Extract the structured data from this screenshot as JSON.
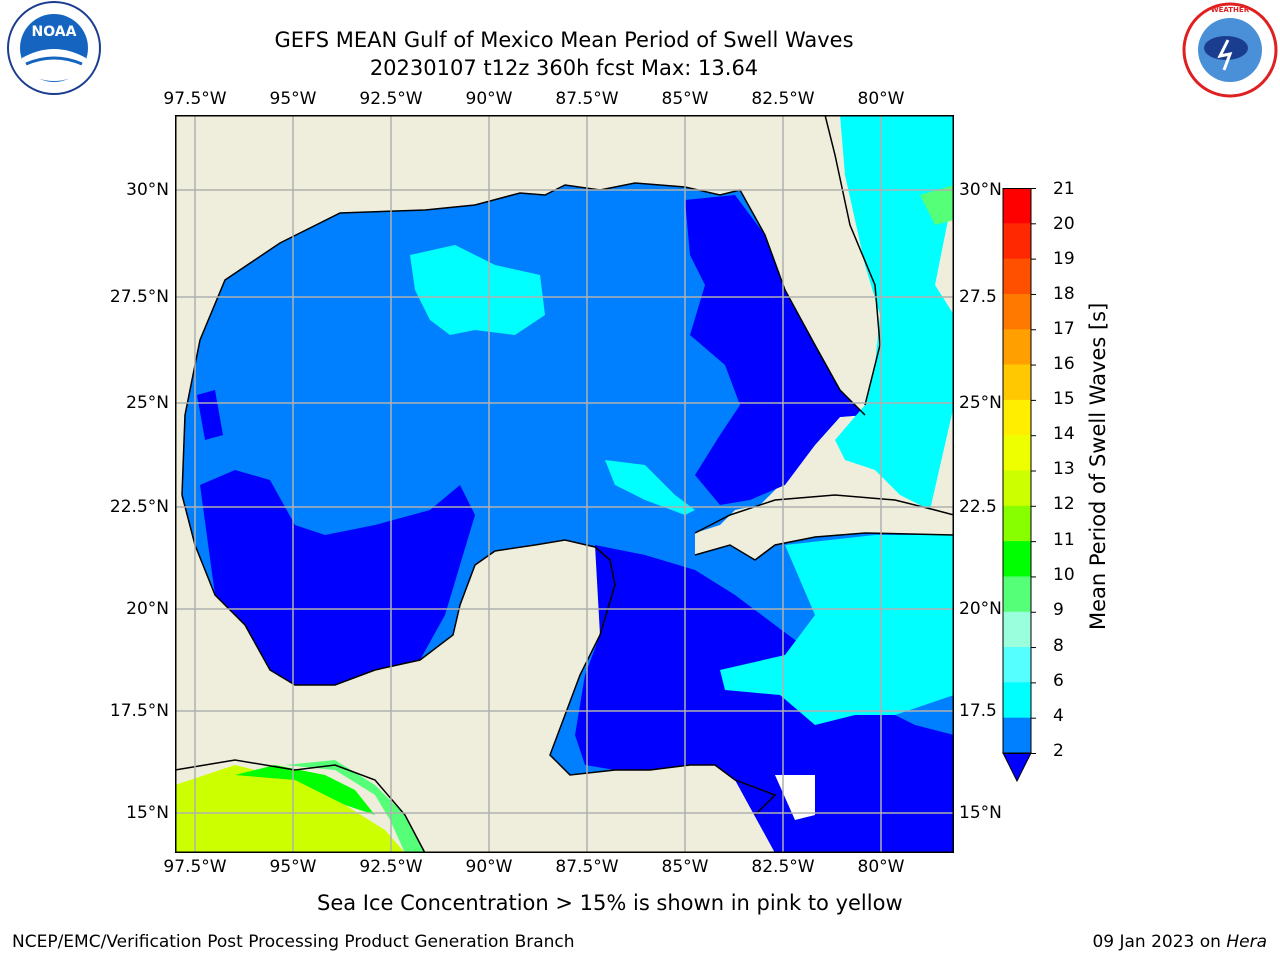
{
  "header": {
    "title_line1": "GEFS MEAN Gulf of Mexico Mean Period of Swell Waves",
    "title_line2": "20230107 t12z 360h fcst   Max: 13.64"
  },
  "map": {
    "lon_labels": [
      "97.5°W",
      "95°W",
      "92.5°W",
      "90°W",
      "87.5°W",
      "85°W",
      "82.5°W",
      "80°W"
    ],
    "lat_labels_left": [
      "30°N",
      "27.5°N",
      "25°N",
      "22.5°N",
      "20°N",
      "17.5°N",
      "15°N"
    ],
    "lat_labels_right": [
      "30°N",
      "27.5",
      "25°N",
      "22.5",
      "20°N",
      "17.5",
      "15°N"
    ],
    "colors": {
      "land": "#efeedd",
      "water_deep": "#0000ff",
      "water_mid": "#0080ff",
      "water_light": "#00ffff",
      "grid": "#b0b0b0"
    }
  },
  "colorbar": {
    "label": "Mean Period of Swell Waves [s]",
    "ticks": [
      "21",
      "20",
      "19",
      "18",
      "17",
      "16",
      "15",
      "14",
      "13",
      "12",
      "11",
      "10",
      "9",
      "8",
      "6",
      "4",
      "2"
    ],
    "colors": [
      "#ff0000",
      "#ff2800",
      "#ff5000",
      "#ff7800",
      "#ffa000",
      "#ffc800",
      "#ffee00",
      "#eeff00",
      "#ccff00",
      "#88ff00",
      "#00ff00",
      "#55ff77",
      "#99ffdd",
      "#55ffff",
      "#00ffff",
      "#0080ff"
    ],
    "under_color": "#0000ff"
  },
  "note": "Sea Ice Concentration > 15% is shown in pink to yellow",
  "footer": {
    "left": "NCEP/EMC/Verification Post Processing Product Generation Branch",
    "date": "09 Jan 2023 on",
    "machine": "Hera"
  },
  "logos": {
    "left": {
      "icon": "noaa-logo",
      "text": "NOAA"
    },
    "right": {
      "icon": "nws-logo",
      "text": "NATIONAL WEATHER SERVICE"
    }
  }
}
